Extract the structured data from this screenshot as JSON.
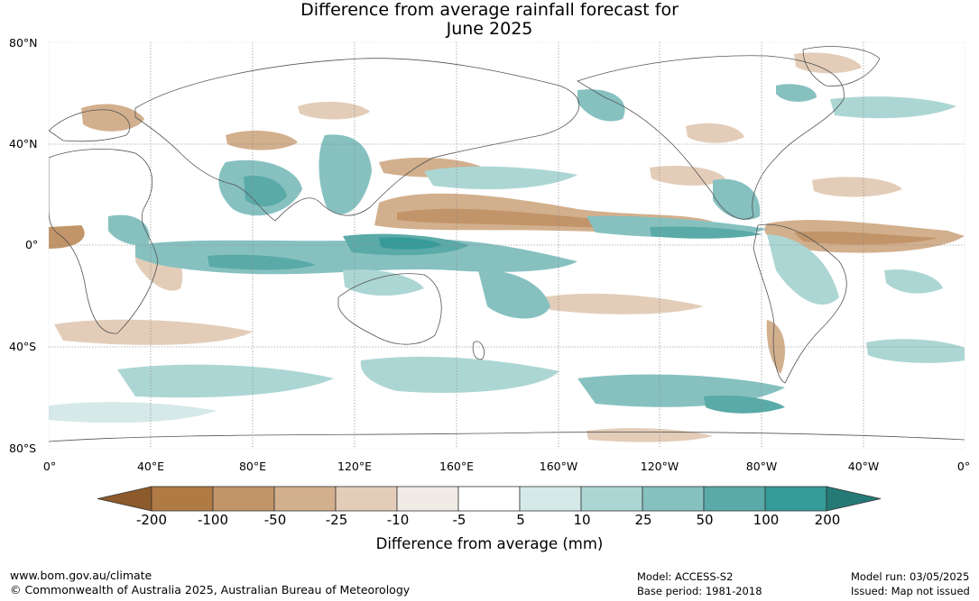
{
  "title_line1": "Difference from average rainfall forecast for",
  "title_line2": "June 2025",
  "lat_labels": [
    "80°N",
    "40°N",
    "0°",
    "40°S",
    "80°S"
  ],
  "lon_labels": [
    "0°",
    "40°E",
    "80°E",
    "120°E",
    "160°E",
    "160°W",
    "120°W",
    "80°W",
    "40°W",
    "0°"
  ],
  "colorbar": {
    "ticks": [
      "-200",
      "-100",
      "-50",
      "-25",
      "-10",
      "-5",
      "5",
      "10",
      "25",
      "50",
      "100",
      "200"
    ],
    "colors": [
      "#8c5a2b",
      "#b07a45",
      "#c29469",
      "#d2af8d",
      "#e3cdb9",
      "#f1ebe6",
      "#ffffff",
      "#d5e9e8",
      "#acd6d4",
      "#86c1c0",
      "#5aaaa8",
      "#349b98",
      "#257a77"
    ],
    "title": "Difference from average (mm)"
  },
  "footer": {
    "website": "www.bom.gov.au/climate",
    "copyright": "© Commonwealth of Australia 2025, Australian Bureau of Meteorology",
    "model": "Model: ACCESS-S2",
    "base_period": "Base period: 1981-2018",
    "model_run": "Model run: 03/05/2025",
    "issued": "Issued: Map not issued"
  }
}
